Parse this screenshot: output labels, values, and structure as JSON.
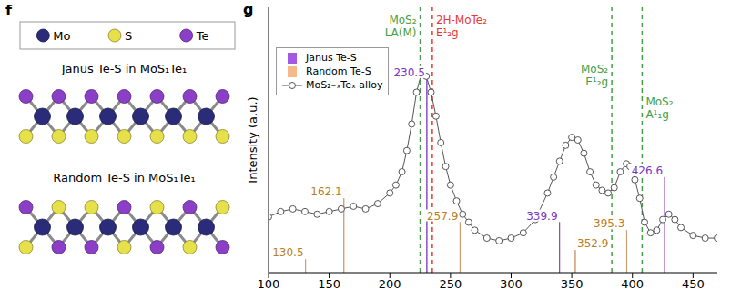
{
  "diagram": {
    "panel": "f",
    "atoms": [
      {
        "name": "Mo",
        "color": "#2a2c7a"
      },
      {
        "name": "S",
        "color": "#e6e04a"
      },
      {
        "name": "Te",
        "color": "#8b3fc6"
      }
    ],
    "structures": [
      {
        "title": "Janus Te-S in MoS₁Te₁",
        "top": [
          "Te",
          "Te",
          "Te",
          "Te",
          "Te",
          "Te",
          "Te"
        ],
        "middle": [
          "Mo",
          "Mo",
          "Mo",
          "Mo",
          "Mo",
          "Mo"
        ],
        "bottom": [
          "S",
          "S",
          "S",
          "S",
          "S",
          "S",
          "S"
        ]
      },
      {
        "title": "Random Te-S in MoS₁Te₁",
        "top": [
          "Te",
          "S",
          "S",
          "Te",
          "S",
          "Te",
          "S"
        ],
        "middle": [
          "Mo",
          "Mo",
          "Mo",
          "Mo",
          "Mo",
          "Mo"
        ],
        "bottom": [
          "S",
          "Te",
          "Te",
          "S",
          "Te",
          "S",
          "Te"
        ]
      }
    ]
  },
  "chart_data": {
    "panel": "g",
    "type": "bar",
    "y_label": "Intensity (a.u.)",
    "xlim": [
      100,
      470
    ],
    "xticks": [
      100,
      150,
      200,
      250,
      300,
      350,
      400,
      450
    ],
    "ylim": [
      0,
      100
    ],
    "tick_labels": "x",
    "legend": "top-left",
    "series": [
      {
        "name": "Janus Te-S",
        "type": "bar",
        "color": "#a259e6",
        "x": [
          230.5,
          339.9,
          426.6
        ],
        "values": [
          73,
          19,
          36
        ]
      },
      {
        "name": "Random Te-S",
        "type": "bar",
        "color": "#f5b98b",
        "x": [
          130.5,
          162.1,
          257.9,
          352.9,
          395.3
        ],
        "values": [
          5,
          28,
          19,
          8.5,
          16
        ]
      },
      {
        "name": "MoS₂₋ₓTeₓ alloy",
        "type": "line",
        "color": "#555555",
        "marker": "circle",
        "x": [
          100,
          110,
          120,
          130,
          140,
          150,
          160,
          170,
          180,
          190,
          200,
          205,
          210,
          214,
          218,
          222,
          226,
          230,
          234,
          238,
          242,
          246,
          250,
          255,
          260,
          265,
          270,
          280,
          290,
          300,
          310,
          320,
          330,
          335,
          340,
          345,
          350,
          355,
          360,
          365,
          370,
          375,
          380,
          385,
          390,
          395,
          398,
          402,
          406,
          410,
          415,
          420,
          425,
          430,
          435,
          440,
          450,
          460,
          470
        ],
        "values": [
          21,
          23,
          24,
          23,
          22,
          23,
          24,
          25,
          24,
          26,
          30,
          33,
          38,
          46,
          56,
          68,
          75,
          74,
          68,
          59,
          49,
          40,
          33,
          27,
          22,
          19,
          16,
          13,
          12,
          13,
          15,
          20,
          30,
          36,
          42,
          48,
          51,
          50,
          45,
          38,
          33,
          31,
          30,
          32,
          38,
          41,
          40,
          35,
          28,
          19,
          15,
          16,
          20,
          22,
          20,
          17,
          14,
          13,
          13
        ]
      }
    ],
    "reference_lines": [
      {
        "x": 225,
        "color": "#43a047",
        "line_style": "dashed",
        "label": "MoS₂ LA(M)"
      },
      {
        "x": 235,
        "color": "#e53935",
        "line_style": "dashed",
        "label": "2H-MoTe₂ E¹₂g"
      },
      {
        "x": 383,
        "color": "#43a047",
        "line_style": "dashed",
        "label": "MoS₂ E¹₂g"
      },
      {
        "x": 408,
        "color": "#43a047",
        "line_style": "dashed",
        "label": "MoS₂ A¹₁g"
      }
    ]
  }
}
